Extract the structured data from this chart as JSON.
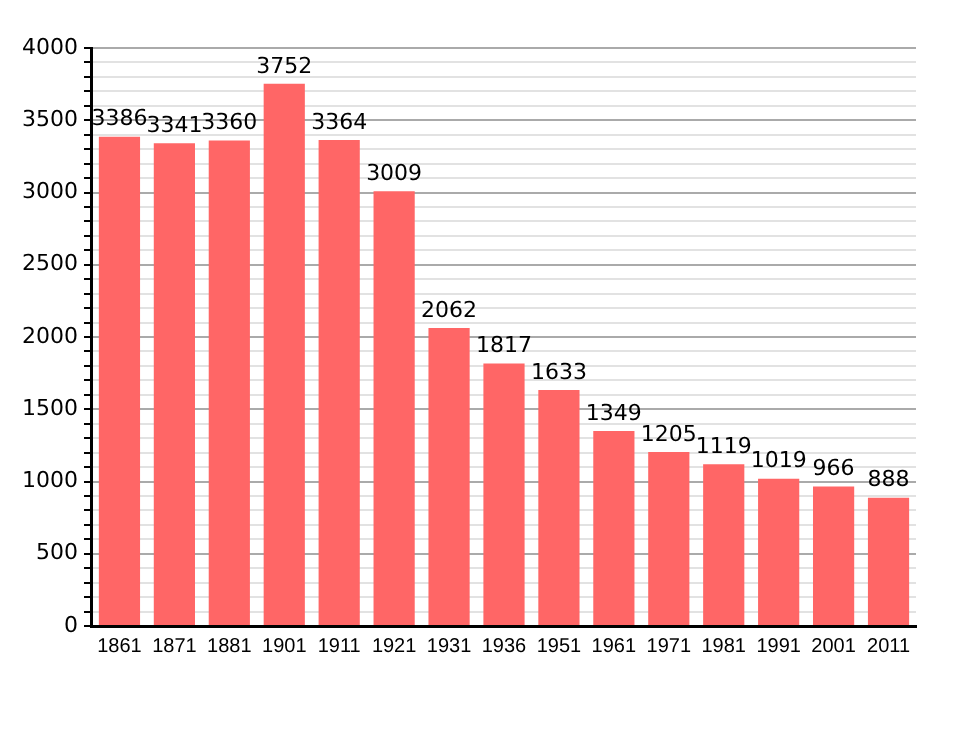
{
  "chart_data": {
    "type": "bar",
    "categories": [
      "1861",
      "1871",
      "1881",
      "1901",
      "1911",
      "1921",
      "1931",
      "1936",
      "1951",
      "1961",
      "1971",
      "1981",
      "1991",
      "2001",
      "2011"
    ],
    "values": [
      3386,
      3341,
      3360,
      3752,
      3364,
      3009,
      2062,
      1817,
      1633,
      1349,
      1205,
      1119,
      1019,
      966,
      888
    ],
    "color": "#ff6666",
    "ylim": [
      0,
      4000
    ],
    "yticks": [
      0,
      {
        "value": 100,
        "label": null
      },
      {
        "value": 200,
        "label": null
      },
      {
        "value": 300,
        "label": null
      },
      {
        "value": 400,
        "label": null
      },
      500,
      {
        "value": 600,
        "label": null
      },
      {
        "value": 700,
        "label": null
      },
      {
        "value": 800,
        "label": null
      },
      {
        "value": 900,
        "label": null
      },
      1000,
      {
        "value": 1100,
        "label": null
      },
      {
        "value": 1200,
        "label": null
      },
      {
        "value": 1300,
        "label": null
      },
      {
        "value": 1400,
        "label": null
      },
      1500,
      {
        "value": 1600,
        "label": null
      },
      {
        "value": 1700,
        "label": null
      },
      {
        "value": 1800,
        "label": null
      },
      {
        "value": 1900,
        "label": null
      },
      2000,
      {
        "value": 2100,
        "label": null
      },
      {
        "value": 2200,
        "label": null
      },
      {
        "value": 2300,
        "label": null
      },
      {
        "value": 2400,
        "label": null
      },
      2500,
      {
        "value": 2600,
        "label": null
      },
      {
        "value": 2700,
        "label": null
      },
      {
        "value": 2800,
        "label": null
      },
      {
        "value": 2900,
        "label": null
      },
      3000,
      {
        "value": 3100,
        "label": null
      },
      {
        "value": 3200,
        "label": null
      },
      {
        "value": 3300,
        "label": null
      },
      {
        "value": 3400,
        "label": null
      },
      3500,
      {
        "value": 3600,
        "label": null
      },
      {
        "value": 3700,
        "label": null
      },
      {
        "value": 3800,
        "label": null
      },
      {
        "value": 3900,
        "label": null
      },
      4000
    ],
    "grid": "y",
    "data_labels": true
  }
}
